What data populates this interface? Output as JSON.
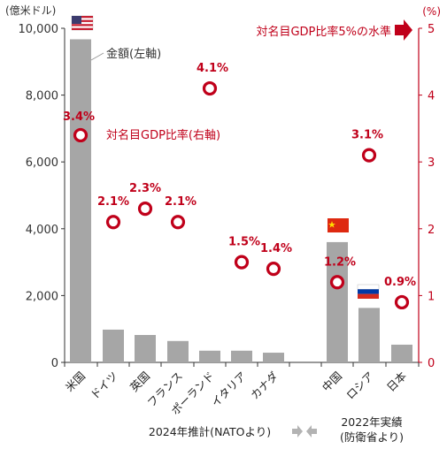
{
  "chart_data": {
    "type": "bar",
    "left_axis_label": "(億米ドル)",
    "right_axis_label": "(%)",
    "left_ylim": [
      0,
      10000
    ],
    "right_ylim": [
      0,
      5
    ],
    "left_ticks": [
      0,
      2000,
      4000,
      6000,
      8000,
      10000
    ],
    "left_tick_labels": [
      "0",
      "2,000",
      "4,000",
      "6,000",
      "8,000",
      "10,000"
    ],
    "right_ticks": [
      0,
      1,
      2,
      3,
      4,
      5
    ],
    "right_tick_labels": [
      "0",
      "1",
      "2",
      "3",
      "4",
      "5"
    ],
    "categories": [
      "米国",
      "ドイツ",
      "英国",
      "フランス",
      "ポーランド",
      "イタリア",
      "カナダ",
      "中国",
      "ロシア",
      "日本"
    ],
    "amount_series": {
      "name": "金額(左軸)",
      "color": "#a6a6a6",
      "values": [
        9670,
        980,
        820,
        640,
        350,
        350,
        290,
        3600,
        1630,
        530
      ]
    },
    "ratio_series": {
      "name": "対名目GDP比率(右軸)",
      "color": "#c0001a",
      "values": [
        3.4,
        2.1,
        2.3,
        2.1,
        4.1,
        1.5,
        1.4,
        1.2,
        3.1,
        0.9
      ],
      "labels": [
        "3.4%",
        "2.1%",
        "2.3%",
        "2.1%",
        "4.1%",
        "1.5%",
        "1.4%",
        "1.2%",
        "3.1%",
        "0.9%"
      ]
    },
    "reference_line": {
      "value": 5,
      "label": "対名目GDP比率5%の水準"
    },
    "groups": [
      {
        "label": "2024年推計(NATOより)"
      },
      {
        "label_line1": "2022年実績",
        "label_line2": "(防衛省より)"
      }
    ],
    "flags": [
      "us-flag",
      "china-flag",
      "russia-flag"
    ]
  }
}
